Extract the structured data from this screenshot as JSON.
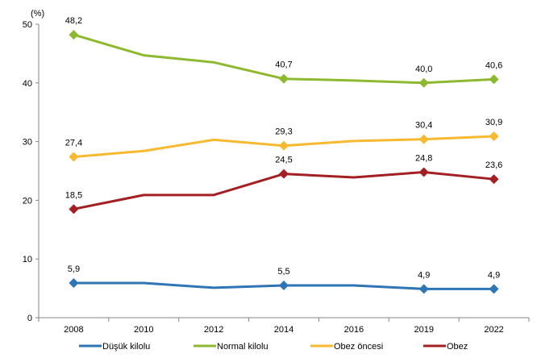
{
  "chart_data": {
    "type": "line",
    "title": "",
    "unit_label": "(%)",
    "xlabel": "",
    "ylabel": "(%)",
    "categories": [
      "2008",
      "2010",
      "2012",
      "2014",
      "2016",
      "2019",
      "2022"
    ],
    "ylim": [
      0,
      50
    ],
    "yticks": [
      0,
      10,
      20,
      30,
      40,
      50
    ],
    "grid": false,
    "legend_position": "bottom",
    "series": [
      {
        "name": "Düşük kilolu",
        "color": "#2E75B6",
        "values": [
          5.9,
          5.9,
          5.1,
          5.5,
          5.5,
          4.9,
          4.9
        ],
        "labeled": [
          true,
          false,
          false,
          true,
          false,
          true,
          true
        ],
        "labels": [
          "5,9",
          "",
          "",
          "5,5",
          "",
          "4,9",
          "4,9"
        ]
      },
      {
        "name": "Normal kilolu",
        "color": "#8DB92E",
        "values": [
          48.2,
          44.7,
          43.5,
          40.7,
          40.4,
          40.0,
          40.6
        ],
        "labeled": [
          true,
          false,
          false,
          true,
          false,
          true,
          true
        ],
        "labels": [
          "48,2",
          "",
          "",
          "40,7",
          "",
          "40,0",
          "40,6"
        ]
      },
      {
        "name": "Obez öncesi",
        "color": "#F7B92F",
        "values": [
          27.4,
          28.4,
          30.3,
          29.3,
          30.1,
          30.4,
          30.9
        ],
        "labeled": [
          true,
          false,
          false,
          true,
          false,
          true,
          true
        ],
        "labels": [
          "27,4",
          "",
          "",
          "29,3",
          "",
          "30,4",
          "30,9"
        ]
      },
      {
        "name": "Obez",
        "color": "#A31F23",
        "values": [
          18.5,
          20.9,
          20.9,
          24.5,
          23.9,
          24.8,
          23.6
        ],
        "labeled": [
          true,
          false,
          false,
          true,
          false,
          true,
          true
        ],
        "labels": [
          "18,5",
          "",
          "",
          "24,5",
          "",
          "24,8",
          "23,6"
        ]
      }
    ]
  }
}
